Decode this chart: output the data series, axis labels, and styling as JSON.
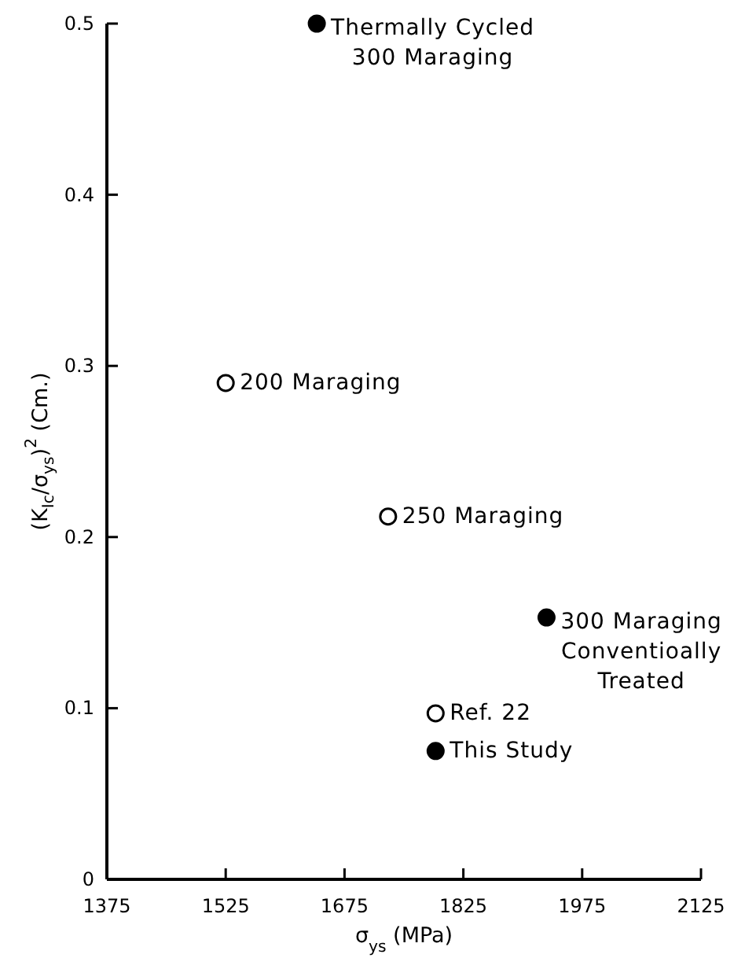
{
  "chart_data": {
    "type": "scatter",
    "xlabel": "σ$_{ys}$ (MPa)",
    "ylabel": "(K$_{Ic}$/σ$_{ys}$)$^{2}$ (Cm.)",
    "series": [
      {
        "color": "#000000",
        "x": [
          1640,
          1930,
          1790
        ],
        "values": [
          0.5,
          0.153,
          0.075
        ]
      },
      {
        "color": "#ffffff",
        "x": [
          1525,
          1730,
          1790
        ],
        "values": [
          0.29,
          0.212,
          0.097
        ]
      }
    ],
    "xlim": [
      1375,
      2125
    ],
    "xticks": [
      1375,
      1525,
      1675,
      1825,
      1975,
      2125
    ],
    "ylim": [
      0,
      0.5
    ],
    "yticks": [
      0,
      0.1,
      0.2,
      0.3,
      0.4,
      0.5
    ],
    "marker": "circle",
    "annotations": [
      {
        "text": "Thermally Cycled\n300 Maraging",
        "x": 1640,
        "y": 0.5
      },
      {
        "text": "200 Maraging",
        "x": 1525,
        "y": 0.29
      },
      {
        "text": "250 Maraging",
        "x": 1730,
        "y": 0.212
      },
      {
        "text": "300 Maraging\nConventioally\nTreated",
        "x": 1930,
        "y": 0.153
      },
      {
        "text": "Ref. 22",
        "x": 1790,
        "y": 0.097
      },
      {
        "text": "This Study",
        "x": 1790,
        "y": 0.075
      }
    ]
  }
}
